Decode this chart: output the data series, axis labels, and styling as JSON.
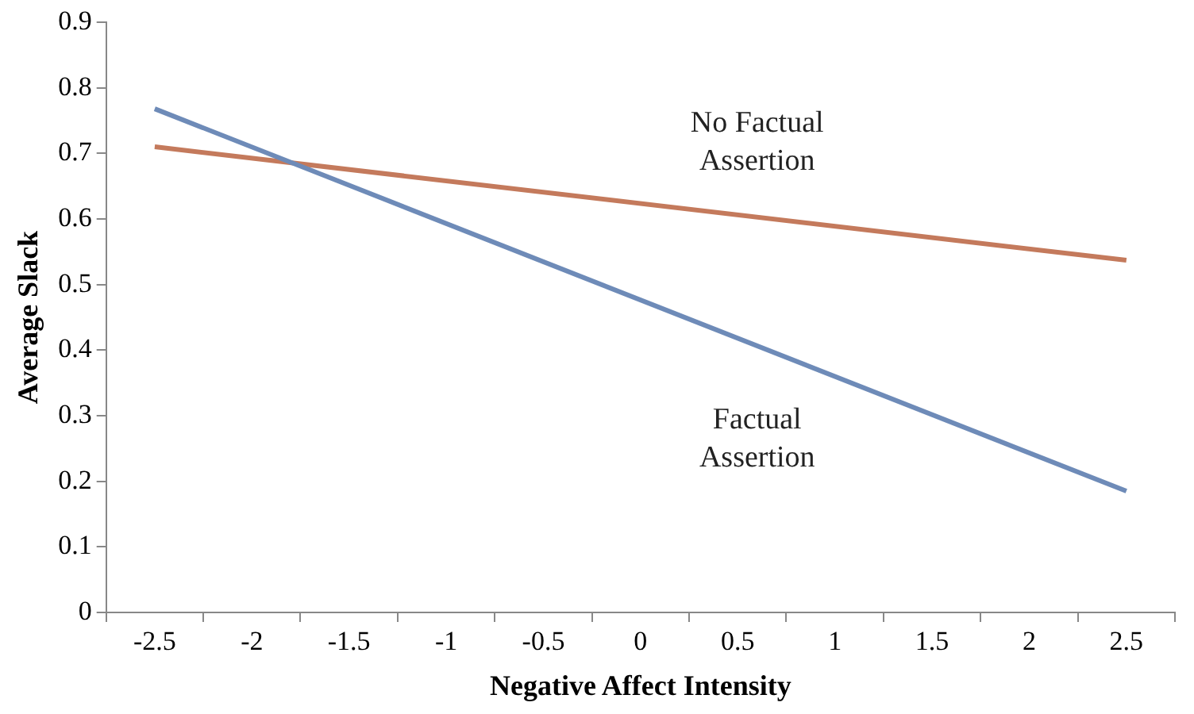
{
  "chart_data": {
    "type": "line",
    "xlabel": "Negative Affect Intensity",
    "ylabel": "Average Slack",
    "categories": [
      "-2.5",
      "-2",
      "-1.5",
      "-1",
      "-0.5",
      "0",
      "0.5",
      "1",
      "1.5",
      "2",
      "2.5"
    ],
    "ylim": [
      0,
      0.9
    ],
    "yticks": [
      0,
      0.1,
      0.2,
      0.3,
      0.4,
      0.5,
      0.6,
      0.7,
      0.8,
      0.9
    ],
    "grid": false,
    "legend": false,
    "marker": "none",
    "line_style": "solid",
    "series": [
      {
        "name": "Factual Assertion",
        "color": "#6e8bb8",
        "values": [
          0.768,
          null,
          null,
          null,
          null,
          null,
          null,
          null,
          null,
          null,
          0.185
        ]
      },
      {
        "name": "No Factual Assertion",
        "color": "#c47a5c",
        "values": [
          0.71,
          null,
          null,
          null,
          null,
          null,
          null,
          null,
          null,
          null,
          0.537
        ]
      }
    ]
  }
}
